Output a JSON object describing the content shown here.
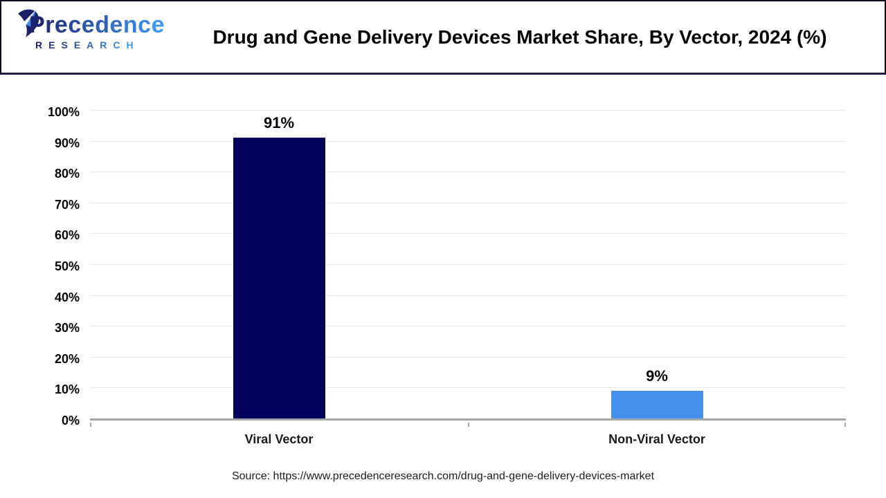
{
  "brand": {
    "logo_text": "Precedence",
    "logo_subtext": "RESEARCH",
    "logo_color_start": "#1e2470",
    "logo_color_end": "#3f96ea"
  },
  "header": {
    "title": "Drug and Gene Delivery Devices Market Share, By Vector, 2024 (%)"
  },
  "chart_data": {
    "type": "bar",
    "title": "Drug and Gene Delivery Devices Market Share, By Vector, 2024 (%)",
    "categories": [
      "Viral Vector",
      "Non-Viral Vector"
    ],
    "values": [
      91,
      9
    ],
    "data_labels": [
      "91%",
      "9%"
    ],
    "bar_colors": [
      "#02025c",
      "#4490ec"
    ],
    "ylim": [
      0,
      100
    ],
    "ytick_step": 10,
    "ytick_labels": [
      "0%",
      "10%",
      "20%",
      "30%",
      "40%",
      "50%",
      "60%",
      "70%",
      "80%",
      "90%",
      "100%"
    ],
    "grid": true,
    "legend": false,
    "gridline_color": "#e8e8e8",
    "axis_color": "#a6a6a6"
  },
  "footer": {
    "source": "Source: https://www.precedenceresearch.com/drug-and-gene-delivery-devices-market"
  }
}
